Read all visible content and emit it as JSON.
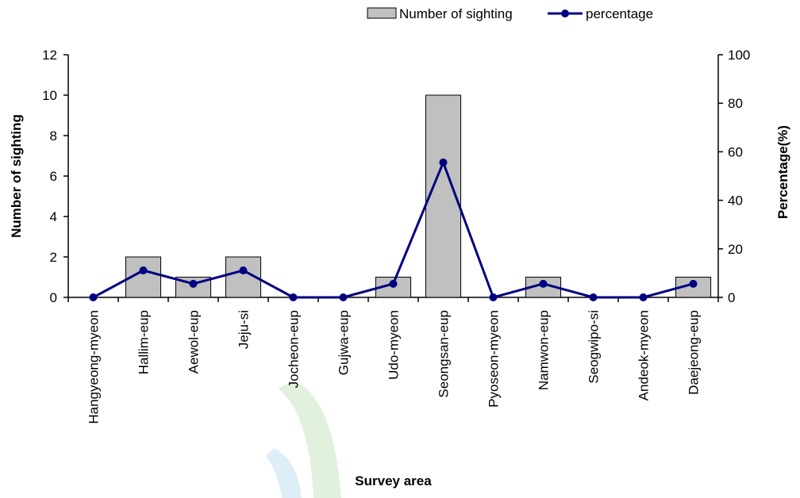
{
  "chart_data": {
    "type": "bar",
    "categories": [
      "Hangyeong-myeon",
      "Hallim-eup",
      "Aewol-eup",
      "Jeju-si",
      "Jocheon-eup",
      "Gujwa-eup",
      "Udo-myeon",
      "Seongsan-eup",
      "Pyoseon-myeon",
      "Namwon-eup",
      "Seogwipo-si",
      "Andeok-myeon",
      "Daejeong-eup"
    ],
    "series": [
      {
        "name": "Number of sighting",
        "type": "bar",
        "axis": "left",
        "values": [
          0,
          2,
          1,
          2,
          0,
          0,
          1,
          10,
          0,
          1,
          0,
          0,
          1
        ]
      },
      {
        "name": "percentage",
        "type": "line",
        "axis": "right",
        "values": [
          0,
          11.1,
          5.6,
          11.1,
          0,
          0,
          5.6,
          55.6,
          0,
          5.6,
          0,
          0,
          5.6
        ]
      }
    ],
    "xlabel": "Survey area",
    "ylabel": "Number of sighting",
    "y2label": "Percentage(%)",
    "ylim": [
      0,
      12
    ],
    "y2lim": [
      0,
      100
    ],
    "yticks": [
      0,
      2,
      4,
      6,
      8,
      10,
      12
    ],
    "y2ticks": [
      0,
      20,
      40,
      60,
      80,
      100
    ],
    "legend_position": "top-right",
    "colors": {
      "bar_fill": "#c0c0c0",
      "bar_stroke": "#000000",
      "line": "#000080"
    },
    "grid": false
  }
}
